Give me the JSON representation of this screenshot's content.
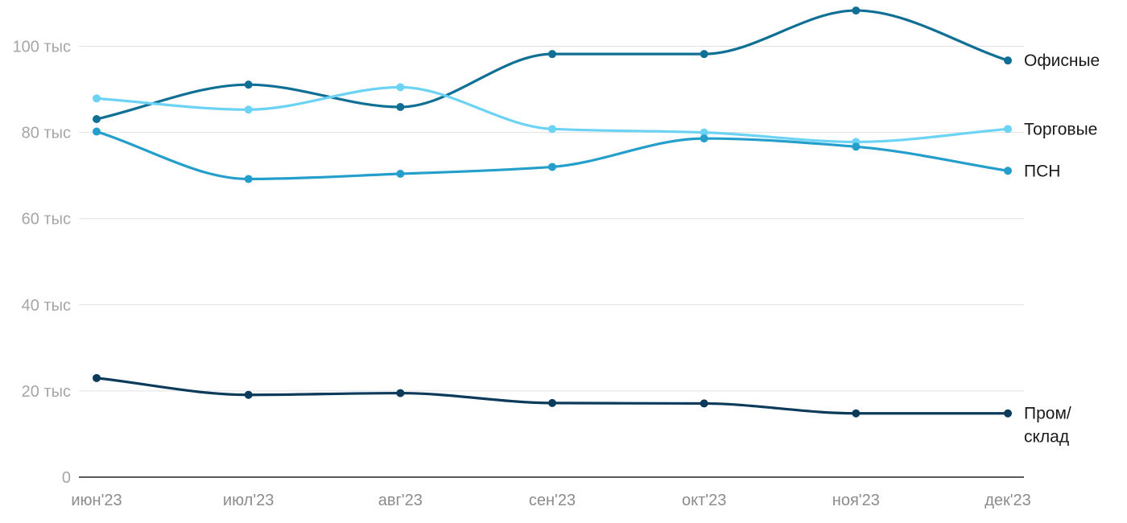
{
  "chart_data": {
    "type": "line",
    "title": "",
    "xlabel": "",
    "ylabel": "",
    "categories": [
      "июн'23",
      "июл'23",
      "авг'23",
      "сен'23",
      "окт'23",
      "ноя'23",
      "дек'23"
    ],
    "y_ticks": [
      {
        "value": 0,
        "label": "0"
      },
      {
        "value": 20000,
        "label": "20 тыс"
      },
      {
        "value": 40000,
        "label": "40 тыс"
      },
      {
        "value": 60000,
        "label": "60 тыс"
      },
      {
        "value": 80000,
        "label": "80 тыс"
      },
      {
        "value": 100000,
        "label": "100 тыс"
      }
    ],
    "ylim": [
      0,
      108500
    ],
    "grid": true,
    "legend": "direct labels at line ends (right)",
    "series": [
      {
        "name": "Офисные",
        "label_lines": [
          "Офисные"
        ],
        "color": "#0f6f94",
        "values": [
          83100,
          91100,
          85900,
          98200,
          98200,
          108300,
          96700
        ]
      },
      {
        "name": "Торговые",
        "label_lines": [
          "Торговые"
        ],
        "color": "#6dd3f5",
        "values": [
          87900,
          85300,
          90500,
          80800,
          80000,
          77800,
          80800
        ]
      },
      {
        "name": "ПСН",
        "label_lines": [
          "ПСН"
        ],
        "color": "#249ecb",
        "values": [
          80200,
          69200,
          70400,
          72000,
          78600,
          76700,
          71100
        ]
      },
      {
        "name": "Пром/склад",
        "label_lines": [
          "Пром/",
          "склад"
        ],
        "color": "#0b3a5b",
        "values": [
          23000,
          19100,
          19500,
          17200,
          17100,
          14800,
          14800
        ]
      }
    ]
  }
}
